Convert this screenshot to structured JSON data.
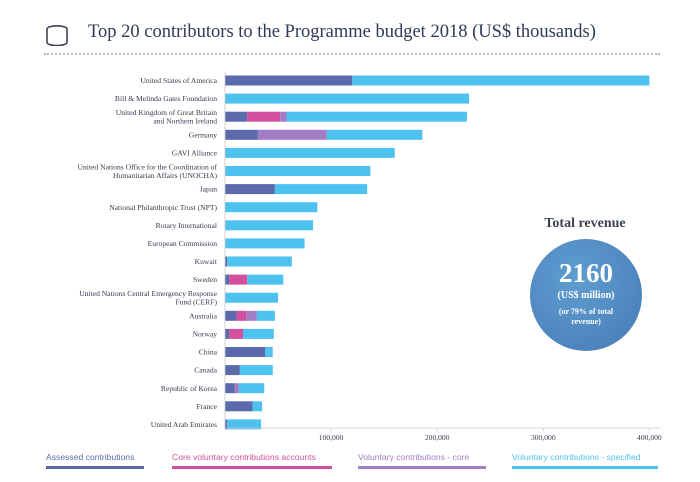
{
  "header": {
    "title": "Top 20 contributors to the Programme budget 2018 (US$ thousands)",
    "icon": "coin-stack-icon"
  },
  "summary": {
    "heading": "Total revenue",
    "value": "2160",
    "unit": "(US$ million)",
    "note": "(or 79% of total revenue)",
    "bubble_color": "#4f86bf"
  },
  "chart_data": {
    "type": "bar",
    "orientation": "horizontal",
    "stacked": true,
    "title": "Top 20 contributors to the Programme budget 2018 (US$ thousands)",
    "xlabel": "",
    "ylabel": "",
    "xlim": [
      0,
      410000
    ],
    "xticks": [
      100000,
      200000,
      300000,
      400000
    ],
    "xtick_labels": [
      "100,000",
      "200,000",
      "300,000",
      "400,000"
    ],
    "grid": false,
    "legend_position": "bottom",
    "categories": [
      "United States of America",
      "Bill & Melinda Gates Foundation",
      "United Kingdom of Great Britain and Northern Ireland",
      "Germany",
      "GAVI Alliance",
      "United Nations Office for the Coordination of Humanitarian Affairs (UNOCHA)",
      "Japan",
      "National Philanthropic Trust (NPT)",
      "Rotary International",
      "European Commission",
      "Kuwait",
      "Sweden",
      "United Nations Central Emergency Response Fund (CERF)",
      "Australia",
      "Norway",
      "China",
      "Canada",
      "Republic of Korea",
      "France",
      "United Arab Emirates"
    ],
    "category_lines": [
      [
        "United States of America"
      ],
      [
        "Bill & Melinda Gates Foundation"
      ],
      [
        "United Kingdom of Great Britain",
        "and Northern Ireland"
      ],
      [
        "Germany"
      ],
      [
        "GAVI Alliance"
      ],
      [
        "United Nations Office for the Coordination of",
        "Humanitarian Affairs (UNOCHA)"
      ],
      [
        "Japan"
      ],
      [
        "National Philanthropic Trust (NPT)"
      ],
      [
        "Rotary International"
      ],
      [
        "European Commission"
      ],
      [
        "Kuwait"
      ],
      [
        "Sweden"
      ],
      [
        "United Nations Central Emergency Response",
        "Fund (CERF)"
      ],
      [
        "Australia"
      ],
      [
        "Norway"
      ],
      [
        "China"
      ],
      [
        "Canada"
      ],
      [
        "Republic of Korea"
      ],
      [
        "France"
      ],
      [
        "United Arab Emirates"
      ]
    ],
    "series": [
      {
        "name": "Assessed contributions",
        "color": "#5b6aab",
        "values": [
          120000,
          0,
          21000,
          31000,
          0,
          0,
          47000,
          0,
          0,
          0,
          2000,
          4000,
          0,
          11000,
          4000,
          38000,
          14000,
          9000,
          26000,
          2000
        ]
      },
      {
        "name": "Core voluntary contributions accounts",
        "color": "#d14f9c",
        "values": [
          0,
          0,
          31000,
          0,
          0,
          0,
          0,
          0,
          0,
          0,
          0,
          17000,
          0,
          9000,
          13000,
          0,
          0,
          0,
          0,
          0
        ]
      },
      {
        "name": "Voluntary contributions - core",
        "color": "#a37cc6",
        "values": [
          0,
          0,
          6000,
          65000,
          0,
          0,
          0,
          0,
          0,
          0,
          0,
          0,
          0,
          10000,
          0,
          0,
          0,
          4000,
          0,
          0
        ]
      },
      {
        "name": "Voluntary contributions - specified",
        "color": "#4ec2ee",
        "values": [
          280000,
          230000,
          170000,
          90000,
          160000,
          137000,
          87000,
          87000,
          83000,
          75000,
          61000,
          34000,
          50000,
          17000,
          29000,
          7000,
          31000,
          24000,
          9000,
          32000
        ]
      }
    ]
  }
}
